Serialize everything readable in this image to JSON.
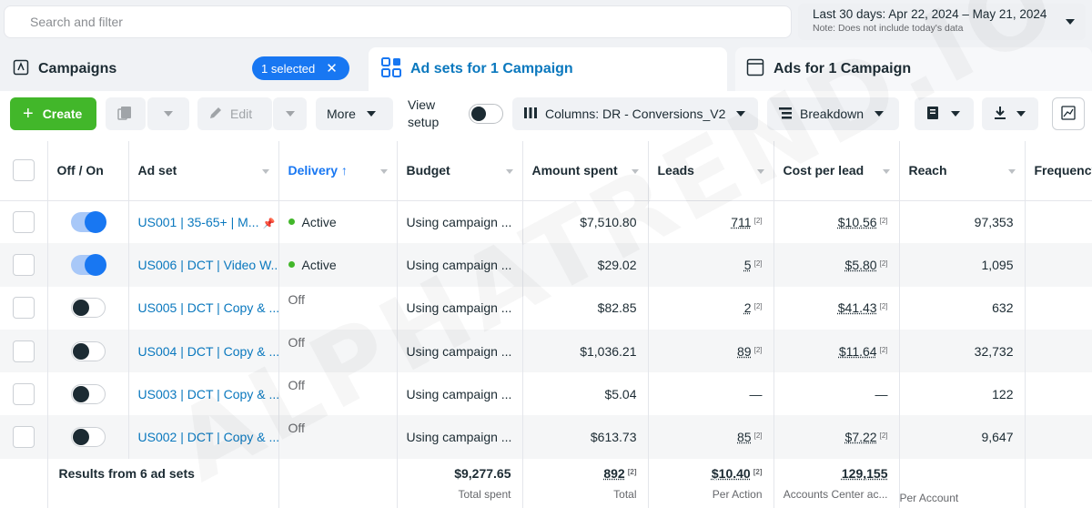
{
  "search": {
    "placeholder": "Search and filter"
  },
  "date_range": {
    "label": "Last 30 days: Apr 22, 2024 – May 21, 2024",
    "note": "Note: Does not include today's data"
  },
  "tabs": {
    "campaigns": "Campaigns",
    "selected_pill": "1 selected",
    "adsets": "Ad sets for 1 Campaign",
    "ads": "Ads for 1 Campaign"
  },
  "toolbar": {
    "create": "Create",
    "edit": "Edit",
    "more": "More",
    "view_setup_line1": "View",
    "view_setup_line2": "setup",
    "columns": "Columns: DR - Conversions_V2",
    "breakdown": "Breakdown"
  },
  "columns": [
    "Off / On",
    "Ad set",
    "Delivery ↑",
    "Budget",
    "Amount spent",
    "Leads",
    "Cost per lead",
    "Reach",
    "Frequency"
  ],
  "rows": [
    {
      "adset": "US001 | 35-65+ | M...",
      "delivery": "Active",
      "budget": "Using campaign ...",
      "spent": "$7,510.80",
      "leads": "711",
      "cpl": "$10.56",
      "reach": "97,353",
      "on": true
    },
    {
      "adset": "US006 | DCT | Video W...",
      "delivery": "Active",
      "budget": "Using campaign ...",
      "spent": "$29.02",
      "leads": "5",
      "cpl": "$5.80",
      "reach": "1,095",
      "on": true
    },
    {
      "adset": "US005 | DCT | Copy & ...",
      "delivery": "Off",
      "budget": "Using campaign ...",
      "spent": "$82.85",
      "leads": "2",
      "cpl": "$41.43",
      "reach": "632",
      "on": false
    },
    {
      "adset": "US004 | DCT | Copy & ...",
      "delivery": "Off",
      "budget": "Using campaign ...",
      "spent": "$1,036.21",
      "leads": "89",
      "cpl": "$11.64",
      "reach": "32,732",
      "on": false
    },
    {
      "adset": "US003 | DCT | Copy & ...",
      "delivery": "Off",
      "budget": "Using campaign ...",
      "spent": "$5.04",
      "leads": "—",
      "cpl": "—",
      "reach": "122",
      "on": false
    },
    {
      "adset": "US002 | DCT | Copy & ...",
      "delivery": "Off",
      "budget": "Using campaign ...",
      "spent": "$613.73",
      "leads": "85",
      "cpl": "$7.22",
      "reach": "9,647",
      "on": false
    }
  ],
  "footnote_marker": "[2]",
  "totals": {
    "label": "Results from 6 ad sets",
    "spent": "$9,277.65",
    "spent_sub": "Total spent",
    "leads": "892",
    "leads_sub": "Total",
    "cpl": "$10.40",
    "cpl_sub": "Per Action",
    "reach": "129,155",
    "reach_sub": "Accounts Center ac...",
    "freq_sub": "Per Account"
  },
  "watermark": "ALPHATREND.IO"
}
